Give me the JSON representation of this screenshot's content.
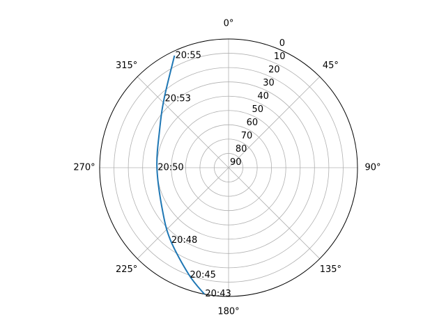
{
  "chart_data": {
    "type": "polar-line",
    "theta_zero": "N",
    "theta_direction": "clockwise",
    "radial_axis": {
      "label_values": [
        0,
        10,
        20,
        30,
        40,
        50,
        60,
        70,
        80,
        90
      ],
      "reversed": true,
      "range": [
        90,
        0
      ]
    },
    "angular_ticks": [
      {
        "angle": 0,
        "label": "0°"
      },
      {
        "angle": 45,
        "label": "45°"
      },
      {
        "angle": 90,
        "label": "90°"
      },
      {
        "angle": 135,
        "label": "135°"
      },
      {
        "angle": 180,
        "label": "180°"
      },
      {
        "angle": 225,
        "label": "225°"
      },
      {
        "angle": 270,
        "label": "270°"
      },
      {
        "angle": 315,
        "label": "315°"
      }
    ],
    "grid": true,
    "series": [
      {
        "color": "#1f77b4",
        "points": [
          {
            "az": 190.8,
            "el": 0,
            "label": "20:43"
          },
          {
            "az": 200.1,
            "el": 10,
            "label": "20:45"
          },
          {
            "az": 218.5,
            "el": 25,
            "label": "20:48"
          },
          {
            "az": 237.0,
            "el": 35,
            "label": ""
          },
          {
            "az": 270.0,
            "el": 40,
            "label": "20:50"
          },
          {
            "az": 299.0,
            "el": 35,
            "label": ""
          },
          {
            "az": 317.0,
            "el": 24,
            "label": "20:53"
          },
          {
            "az": 334.3,
            "el": 3,
            "label": "20:55"
          }
        ]
      }
    ]
  }
}
